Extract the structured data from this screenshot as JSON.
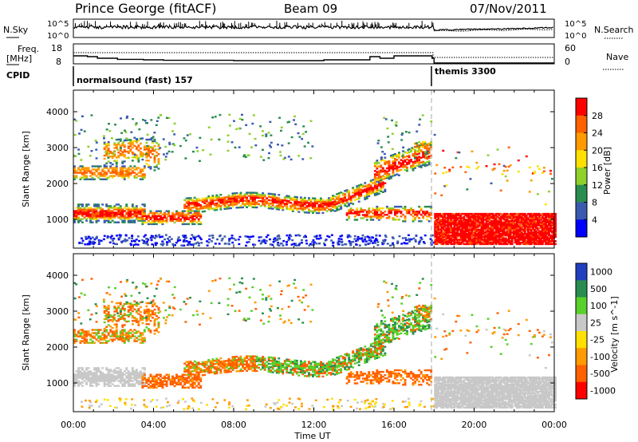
{
  "header": {
    "station": "Prince George (fitACF)",
    "beam": "Beam 09",
    "date": "07/Nov/2011"
  },
  "top_panels": {
    "nsky_label": "N.Sky",
    "nsky_tick_top": "10^5",
    "nsky_tick_bottom": "10^0",
    "nsearch_label": "N.Search",
    "nsearch_tick_top": "10^5",
    "nsearch_tick_bottom": "10^0",
    "freq_label_1": "Freq.",
    "freq_label_2": "[MHz]",
    "freq_tick_top": "18",
    "freq_tick_bottom": "8",
    "nave_label": "Nave",
    "nave_tick_top": "60",
    "nave_tick_bottom": "0",
    "cpid_label": "CPID",
    "cpid_1": "normalsound (fast) 157",
    "cpid_2": "themis 3300"
  },
  "chart_data": [
    {
      "type": "heatmap",
      "name": "power",
      "ylabel": "Slant Range [km]",
      "ylim": [
        200,
        4600
      ],
      "yticks": [
        "1000",
        "2000",
        "3000",
        "4000"
      ],
      "xlim": [
        0,
        24
      ],
      "colorbar_label": "Power [dB]",
      "colorbar_ticks": [
        "28",
        "24",
        "20",
        "16",
        "12",
        "8",
        "4"
      ],
      "colors": [
        "#ff0000",
        "#ff6000",
        "#ff9a00",
        "#ffe000",
        "#8fd02a",
        "#2a8c50",
        "#3a5ab0",
        "#0000ff"
      ]
    },
    {
      "type": "heatmap",
      "name": "velocity",
      "ylabel": "Slant Range [km]",
      "ylim": [
        200,
        4600
      ],
      "yticks": [
        "1000",
        "2000",
        "3000",
        "4000"
      ],
      "xlim": [
        0,
        24
      ],
      "colorbar_label": "Velocity [m s^-1]",
      "colorbar_ticks": [
        "1000",
        "500",
        "100",
        "25",
        "-25",
        "-100",
        "-500",
        "-1000"
      ],
      "colors": [
        "#2040c0",
        "#2a8c50",
        "#5ad02a",
        "#c8c8c8",
        "#ffe000",
        "#ff9a00",
        "#ff6000",
        "#ff0000"
      ]
    }
  ],
  "time_axis": {
    "ticks": [
      "00:00",
      "04:00",
      "08:00",
      "12:00",
      "16:00",
      "20:00",
      "00:00"
    ],
    "label": "Time UT"
  }
}
